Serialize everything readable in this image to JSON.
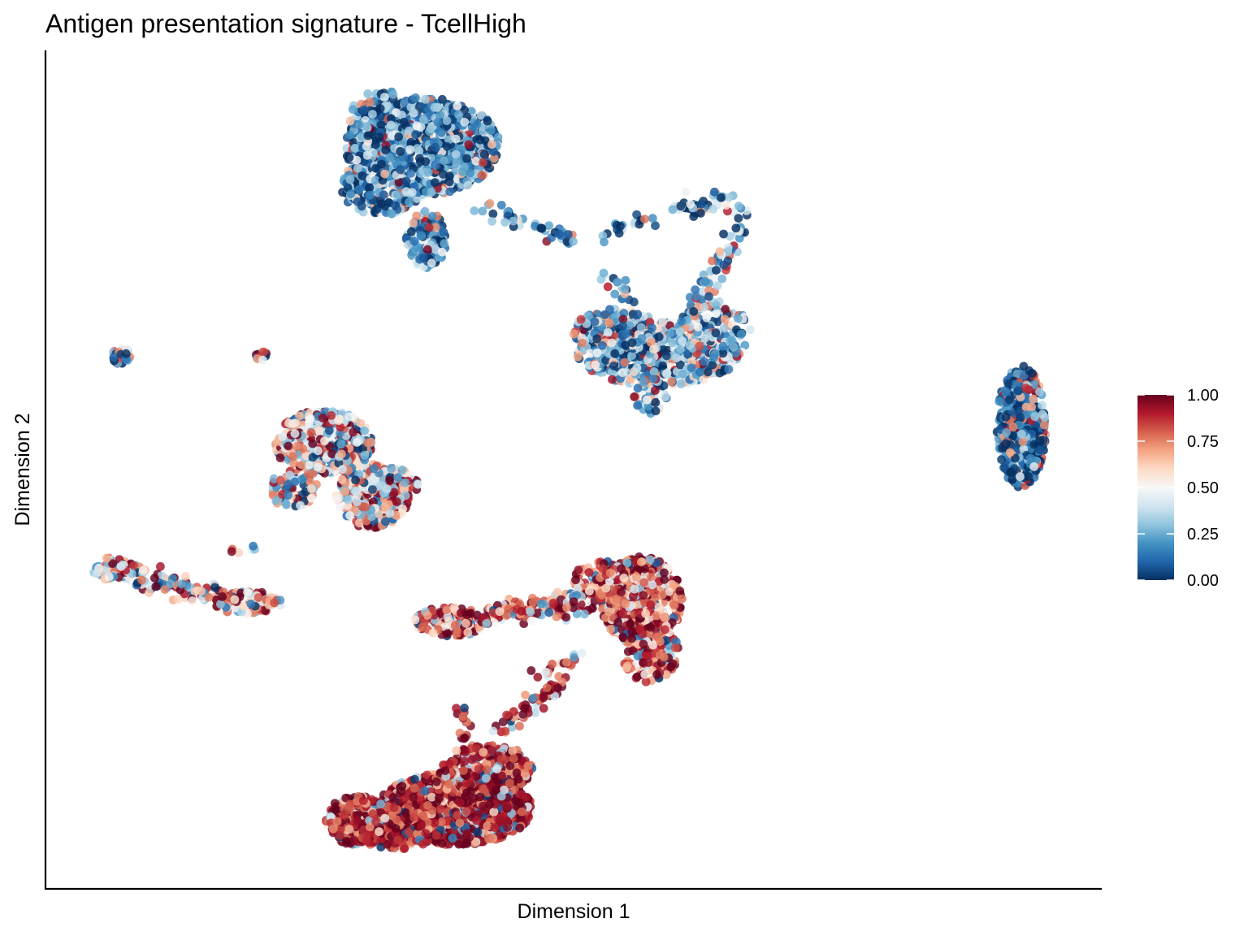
{
  "chart_data": {
    "type": "scatter",
    "title": "Antigen presentation signature - TcellHigh",
    "xlabel": "Dimension 1",
    "ylabel": "Dimension 2",
    "axis_ticks": "none",
    "grid": false,
    "legend_position": "right",
    "color_scale": {
      "palette": "RdBu (reversed)",
      "min": 0.0,
      "max": 1.0,
      "tick_values": [
        0.0,
        0.25,
        0.5,
        0.75,
        1.0
      ],
      "tick_labels": [
        "0.00",
        "0.25",
        "0.50",
        "0.75",
        "1.00"
      ],
      "colors": [
        "#053061",
        "#2166ac",
        "#4393c3",
        "#92c5de",
        "#d1e5f0",
        "#f7f7f7",
        "#fddbc7",
        "#f4a582",
        "#d6604d",
        "#b2182b",
        "#67001f"
      ]
    },
    "clusters": [
      {
        "name": "",
        "center": [
          4.6,
          10.0
        ],
        "mean_score": 0.2
      },
      {
        "name": "",
        "center": [
          9.2,
          7.6
        ],
        "mean_score": 0.3
      },
      {
        "name": "",
        "center": [
          15.3,
          5.8
        ],
        "mean_score": 0.12
      },
      {
        "name": "",
        "center": [
          1.3,
          7.0
        ],
        "mean_score": 0.55
      },
      {
        "name": "",
        "center": [
          3.5,
          6.8
        ],
        "mean_score": 0.3
      },
      {
        "name": "",
        "center": [
          4.0,
          5.0
        ],
        "mean_score": 0.62
      },
      {
        "name": "",
        "center": [
          2.2,
          3.6
        ],
        "mean_score": 0.65
      },
      {
        "name": "",
        "center": [
          8.0,
          3.7
        ],
        "mean_score": 0.85
      },
      {
        "name": "",
        "center": [
          5.5,
          0.7
        ],
        "mean_score": 0.92
      }
    ]
  }
}
